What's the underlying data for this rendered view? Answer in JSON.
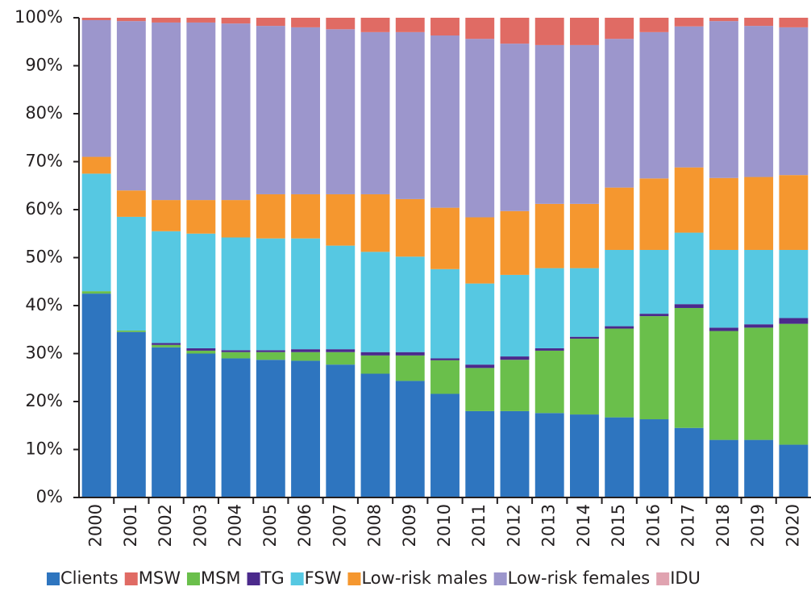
{
  "chart_data": {
    "type": "stacked_bar_100",
    "categories": [
      "2000",
      "2001",
      "2002",
      "2003",
      "2004",
      "2005",
      "2006",
      "2007",
      "2008",
      "2009",
      "2010",
      "2011",
      "2012",
      "2013",
      "2014",
      "2015",
      "2016",
      "2017",
      "2018",
      "2019",
      "2020"
    ],
    "series": [
      {
        "name": "Clients",
        "color": "#2e75bf",
        "values": [
          42.5,
          34.5,
          31.3,
          30,
          29,
          28.7,
          28.5,
          27.7,
          25.8,
          24.3,
          21.6,
          18,
          18,
          17.6,
          17.3,
          16.7,
          16.3,
          14.5,
          12,
          12,
          11
        ]
      },
      {
        "name": "MSW",
        "color": "#e06b64",
        "values": [
          0.5,
          0.7,
          1,
          1,
          1.2,
          1.7,
          2,
          2.4,
          3,
          3,
          3.7,
          4.4,
          5.4,
          5.7,
          5.7,
          4.4,
          3,
          1.8,
          0.7,
          1.7,
          2
        ]
      },
      {
        "name": "MSM",
        "color": "#6abf4b",
        "values": [
          0.5,
          0.3,
          0.5,
          0.6,
          1.3,
          1.6,
          1.8,
          2.6,
          3.8,
          5.3,
          7,
          9,
          10.7,
          13,
          15.8,
          18.5,
          21.5,
          25,
          22.7,
          23.4,
          25.2
        ]
      },
      {
        "name": "TG",
        "color": "#4b2a8c",
        "values": [
          0,
          0,
          0.4,
          0.5,
          0.4,
          0.4,
          0.6,
          0.6,
          0.7,
          0.7,
          0.4,
          0.7,
          0.7,
          0.5,
          0.4,
          0.5,
          0.5,
          0.8,
          0.7,
          0.7,
          1.2
        ]
      },
      {
        "name": "FSW",
        "color": "#56c8e2",
        "values": [
          24.5,
          23.7,
          23.3,
          23.9,
          23.5,
          23.3,
          23.1,
          21.6,
          20.9,
          19.9,
          18.6,
          16.9,
          17,
          16.7,
          14.3,
          15.9,
          13.3,
          14.9,
          16.2,
          15.5,
          14.2
        ]
      },
      {
        "name": "Low-risk males",
        "color": "#f5972f",
        "values": [
          3.5,
          5.5,
          6.5,
          7,
          7.8,
          9.2,
          9.2,
          10.7,
          12,
          12,
          12.8,
          13.8,
          13.3,
          13.4,
          13.4,
          13,
          14.9,
          13.6,
          15,
          15.2,
          15.6
        ]
      },
      {
        "name": "Low-risk females",
        "color": "#9c96cc",
        "values": [
          28.5,
          35.3,
          37,
          37,
          36.8,
          35.1,
          34.8,
          34.4,
          33.8,
          34.8,
          35.9,
          37.2,
          34.9,
          33.1,
          33.1,
          31,
          30.5,
          29.4,
          32.7,
          31.5,
          30.8
        ]
      },
      {
        "name": "IDU",
        "color": "#e0a3b0",
        "values": [
          0,
          0,
          0,
          0,
          0,
          0,
          0,
          0,
          0,
          0,
          0,
          0,
          0,
          0,
          0,
          0,
          0,
          0,
          0,
          0,
          0
        ]
      }
    ],
    "ylim": [
      0,
      100
    ],
    "yticks": [
      {
        "value": 0,
        "label": "0%"
      },
      {
        "value": 10,
        "label": "10%"
      },
      {
        "value": 20,
        "label": "20%"
      },
      {
        "value": 30,
        "label": "30%"
      },
      {
        "value": 40,
        "label": "40%"
      },
      {
        "value": 50,
        "label": "50%"
      },
      {
        "value": 60,
        "label": "60%"
      },
      {
        "value": 70,
        "label": "70%"
      },
      {
        "value": 80,
        "label": "80%"
      },
      {
        "value": 90,
        "label": "90%"
      },
      {
        "value": 100,
        "label": "100%"
      }
    ],
    "legend": "bottom"
  }
}
